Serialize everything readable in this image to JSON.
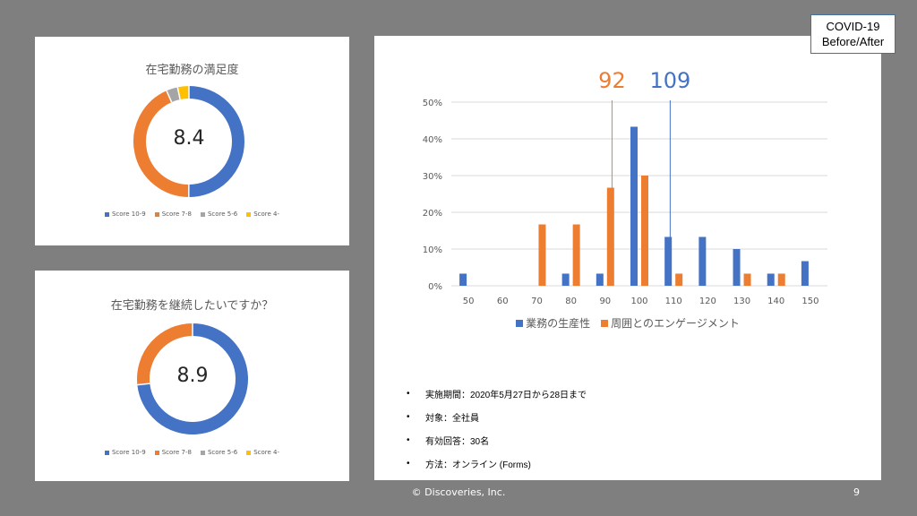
{
  "badge": {
    "line1": "COVID-19",
    "line2": "Before/After"
  },
  "footer": {
    "copyright": "© Discoveries, Inc.",
    "page_number": "9"
  },
  "colors": {
    "blue": "#4472c4",
    "orange": "#ed7d31",
    "gray": "#a5a5a5",
    "yellow": "#ffc000"
  },
  "chart_data": [
    {
      "type": "pie",
      "title": "在宅勤務の満足度",
      "center_value": "8.4",
      "categories": [
        "Score 10-9",
        "Score 7-8",
        "Score 5-6",
        "Score 4-"
      ],
      "values": [
        50,
        43.3,
        3.3,
        3.3
      ]
    },
    {
      "type": "pie",
      "title": "在宅勤務を継続したいですか？",
      "center_value": "8.9",
      "categories": [
        "Score 10-9",
        "Score 7-8",
        "Score 5-6",
        "Score 4-"
      ],
      "values": [
        73.3,
        26.7,
        0,
        0
      ]
    },
    {
      "type": "bar",
      "categories": [
        "50",
        "60",
        "70",
        "80",
        "90",
        "100",
        "110",
        "120",
        "130",
        "140",
        "150"
      ],
      "series": [
        {
          "name": "業務の生産性",
          "values": [
            3.3,
            0,
            0,
            3.3,
            3.3,
            43.3,
            13.3,
            13.3,
            10,
            3.3,
            6.7
          ]
        },
        {
          "name": "周囲とのエンゲージメント",
          "values": [
            0,
            0,
            16.7,
            16.7,
            26.7,
            30,
            3.3,
            0,
            3.3,
            3.3,
            0
          ]
        }
      ],
      "ylim": [
        0,
        50
      ],
      "yticks": [
        "0%",
        "10%",
        "20%",
        "30%",
        "40%",
        "50%"
      ],
      "reference_lines": [
        {
          "value": 92,
          "label": "92",
          "series": "周囲とのエンゲージメント"
        },
        {
          "value": 109,
          "label": "109",
          "series": "業務の生産性"
        }
      ],
      "legend_position": "bottom"
    }
  ],
  "notes": [
    "実施期間：2020年5月27日から28日まで",
    "対象：全社員",
    "有効回答：30名",
    "方法：オンライン (Forms)"
  ]
}
